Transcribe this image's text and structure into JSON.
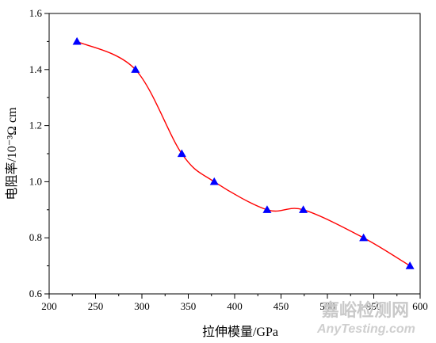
{
  "chart_data": {
    "type": "scatter",
    "xlabel": "拉伸模量/GPa",
    "ylabel": "电阻率/10⁻³Ω cm",
    "xlim": [
      200,
      600
    ],
    "ylim": [
      0.6,
      1.6
    ],
    "xticks": [
      "200",
      "250",
      "300",
      "350",
      "400",
      "450",
      "500",
      "550",
      "600"
    ],
    "yticks": [
      "0.6",
      "0.8",
      "1.0",
      "1.2",
      "1.4",
      "1.6"
    ],
    "grid": false,
    "series": [
      {
        "marker": "triangle",
        "color": "#0000ff",
        "points": [
          {
            "x": 230,
            "y": 1.5
          },
          {
            "x": 293,
            "y": 1.4
          },
          {
            "x": 343,
            "y": 1.1
          },
          {
            "x": 378,
            "y": 1.0
          },
          {
            "x": 435,
            "y": 0.9
          },
          {
            "x": 474,
            "y": 0.9
          },
          {
            "x": 539,
            "y": 0.8
          },
          {
            "x": 589,
            "y": 0.7
          }
        ]
      }
    ],
    "fit_curve_color": "#ff0000"
  },
  "watermark": {
    "cn": "嘉峪检测网",
    "en": "AnyTesting.com"
  }
}
